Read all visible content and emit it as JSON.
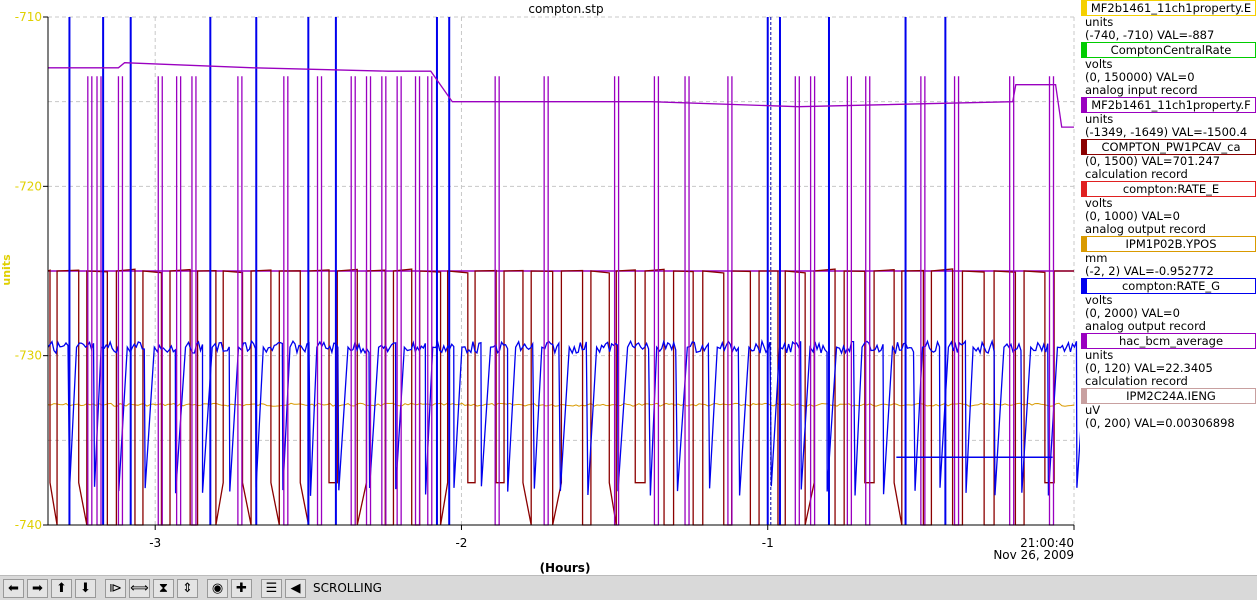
{
  "chart_data": {
    "type": "line",
    "title": "compton.stp",
    "xlabel": "(Hours)",
    "ylabel": "units",
    "ylim": [
      -740,
      -710
    ],
    "xlim": [
      -3.35,
      0
    ],
    "x_ticks": [
      "-3",
      "-2",
      "-1",
      "21:00:40"
    ],
    "x_tick_values": [
      -3,
      -2,
      -1,
      0
    ],
    "y_ticks": [
      "-710",
      "-720",
      "-730",
      "-740"
    ],
    "y_tick_values": [
      -710,
      -720,
      -730,
      -740
    ],
    "date_label": "Nov 26, 2009",
    "grid": true,
    "legend_position": "right",
    "series": [
      {
        "name": "MF2b1461_11ch1property.E",
        "color": "#f5d000",
        "unit": "units",
        "range": "(-740, -710)",
        "val": "VAL=-887",
        "note": ""
      },
      {
        "name": "ComptonCentralRate",
        "color": "#00cc00",
        "unit": "volts",
        "range": "(0, 150000)",
        "val": "VAL=0",
        "note": "analog input record"
      },
      {
        "name": "MF2b1461_11ch1property.F",
        "color": "#9a00c0",
        "unit": "units",
        "range": "(-1349, -1649)",
        "val": "VAL=-1500.4",
        "note": ""
      },
      {
        "name": "COMPTON_PW1PCAV_ca",
        "color": "#8b0000",
        "unit": "",
        "range": "(0, 1500)",
        "val": "VAL=701.247",
        "note": "calculation record"
      },
      {
        "name": "compton:RATE_E",
        "color": "#e02020",
        "unit": "volts",
        "range": "(0, 1000)",
        "val": "VAL=0",
        "note": "analog output record"
      },
      {
        "name": "IPM1P02B.YPOS",
        "color": "#d99a00",
        "unit": "mm",
        "range": "(-2, 2)",
        "val": "VAL=-0.952772",
        "note": ""
      },
      {
        "name": "compton:RATE_G",
        "color": "#0000ee",
        "unit": "volts",
        "range": "(0, 2000)",
        "val": "VAL=0",
        "note": "analog output record"
      },
      {
        "name": "hac_bcm_average",
        "color": "#9a00c0",
        "unit": "units",
        "range": "(0, 120)",
        "val": "VAL=22.3405",
        "note": "calculation record"
      },
      {
        "name": "IPM2C24A.IENG",
        "color": "#c8a0a0",
        "unit": "uV",
        "range": "(0, 200)",
        "val": "VAL=0.00306898",
        "note": ""
      }
    ],
    "traces": {
      "purple_level": [
        {
          "x": -3.35,
          "y": -713.0
        },
        {
          "x": -3.12,
          "y": -713.0
        },
        {
          "x": -3.1,
          "y": -712.7
        },
        {
          "x": -2.68,
          "y": -713.0
        },
        {
          "x": -2.24,
          "y": -713.2
        },
        {
          "x": -2.1,
          "y": -713.2
        },
        {
          "x": -2.03,
          "y": -715.0
        },
        {
          "x": -1.38,
          "y": -715.0
        },
        {
          "x": -0.9,
          "y": -715.3
        },
        {
          "x": -0.2,
          "y": -715.0
        },
        {
          "x": -0.19,
          "y": -714.0
        },
        {
          "x": -0.06,
          "y": -714.0
        },
        {
          "x": -0.04,
          "y": -716.5
        },
        {
          "x": 0,
          "y": -716.5
        }
      ],
      "purple_flat": -725.0,
      "orange_level": -732.9,
      "blue_level": -729.5,
      "darkred_high": -725.0,
      "darkred_low": -737.5
    }
  },
  "toolbar": {
    "status": "SCROLLING",
    "buttons": [
      "arrow-left-icon",
      "arrow-right-icon",
      "arrow-up-icon",
      "arrow-down-icon",
      "zoom-in-x-icon",
      "zoom-out-x-icon",
      "zoom-in-y-icon",
      "zoom-out-y-icon",
      "autoscale-icon",
      "add-icon",
      "config-icon",
      "undo-icon"
    ]
  }
}
